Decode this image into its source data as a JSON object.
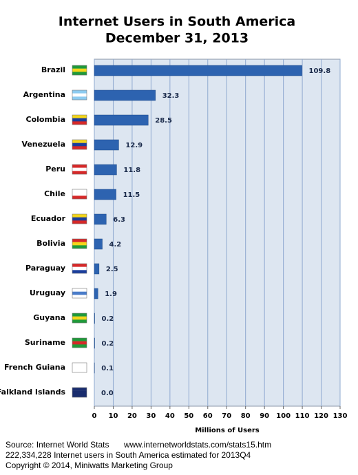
{
  "chart_data": {
    "type": "bar",
    "orientation": "horizontal",
    "title": "Internet Users in South America",
    "subtitle": "December 31, 2013",
    "x_label": "Millions of Users",
    "categories": [
      "Brazil",
      "Argentina",
      "Colombia",
      "Venezuela",
      "Peru",
      "Chile",
      "Ecuador",
      "Bolivia",
      "Paraguay",
      "Uruguay",
      "Guyana",
      "Suriname",
      "French Guiana",
      "Falkland Islands"
    ],
    "values": [
      109.8,
      32.3,
      28.5,
      12.9,
      11.8,
      11.5,
      6.3,
      4.2,
      2.5,
      1.9,
      0.2,
      0.2,
      0.1,
      0.0
    ],
    "value_labels": [
      "109.8",
      "32.3",
      "28.5",
      "12.9",
      "11.8",
      "11.5",
      "6.3",
      "4.2",
      "2.5",
      "1.9",
      "0.2",
      "0.2",
      "0.1",
      "0.0"
    ],
    "color": "#2d63b0",
    "xlim": [
      0,
      130
    ],
    "xticks": [
      0,
      10,
      20,
      30,
      40,
      50,
      60,
      70,
      80,
      90,
      100,
      110,
      120,
      130
    ],
    "grid": true,
    "source": "Source: Internet World Stats",
    "source_url": "www.internetworldstats.com/stats15.htm",
    "note": "222,334,228 Internet users in South America estimated for 2013Q4",
    "copyright": "Copyright © 2014, Miniwatts Marketing Group"
  }
}
